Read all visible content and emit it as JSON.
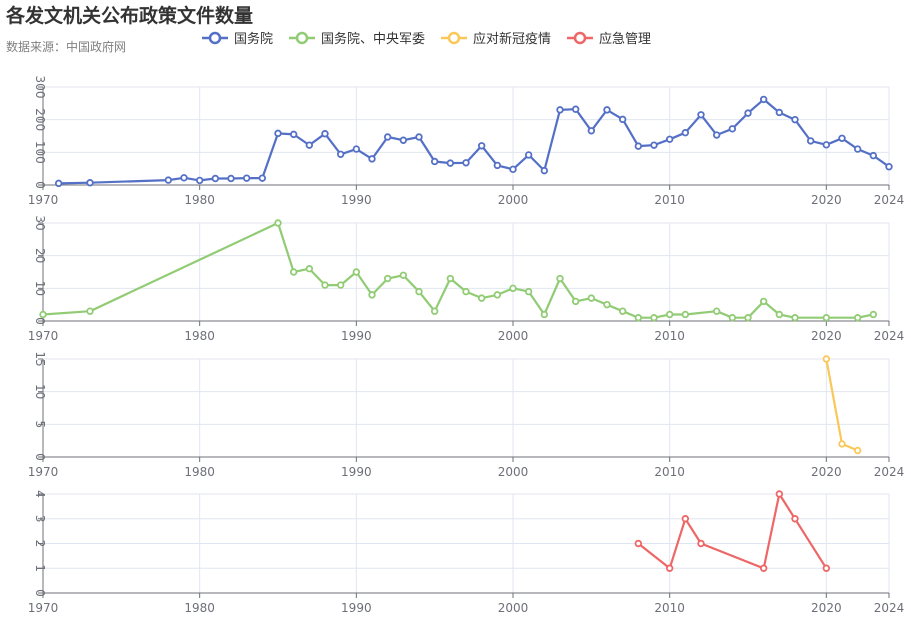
{
  "chart_data": {
    "type": "line",
    "title": "各发文机关公布政策文件数量",
    "subtitle": "数据来源：中国政府网",
    "legend": [
      {
        "name": "国务院",
        "color": "#5470c6"
      },
      {
        "name": "国务院、中央军委",
        "color": "#91cc75"
      },
      {
        "name": "应对新冠疫情",
        "color": "#fac858"
      },
      {
        "name": "应急管理",
        "color": "#ee6666"
      }
    ],
    "xlim": [
      1970,
      2024
    ],
    "x_ticks": [
      "1970",
      "1980",
      "1990",
      "2000",
      "2010",
      "2020",
      "2024"
    ],
    "series": [
      {
        "name": "国务院",
        "color": "#5470c6",
        "ylim": [
          0,
          300
        ],
        "y_ticks": [
          "0",
          "100",
          "200",
          "300"
        ],
        "points": [
          [
            1971,
            5
          ],
          [
            1973,
            7
          ],
          [
            1978,
            15
          ],
          [
            1979,
            22
          ],
          [
            1980,
            14
          ],
          [
            1981,
            20
          ],
          [
            1982,
            20
          ],
          [
            1983,
            21
          ],
          [
            1984,
            21
          ],
          [
            1985,
            158
          ],
          [
            1986,
            155
          ],
          [
            1987,
            122
          ],
          [
            1988,
            157
          ],
          [
            1989,
            94
          ],
          [
            1990,
            110
          ],
          [
            1991,
            80
          ],
          [
            1992,
            147
          ],
          [
            1993,
            137
          ],
          [
            1994,
            147
          ],
          [
            1995,
            72
          ],
          [
            1996,
            67
          ],
          [
            1997,
            68
          ],
          [
            1998,
            120
          ],
          [
            1999,
            60
          ],
          [
            2000,
            48
          ],
          [
            2001,
            92
          ],
          [
            2002,
            44
          ],
          [
            2003,
            230
          ],
          [
            2004,
            232
          ],
          [
            2005,
            166
          ],
          [
            2006,
            230
          ],
          [
            2007,
            201
          ],
          [
            2008,
            119
          ],
          [
            2009,
            122
          ],
          [
            2010,
            140
          ],
          [
            2011,
            160
          ],
          [
            2012,
            215
          ],
          [
            2013,
            153
          ],
          [
            2014,
            172
          ],
          [
            2015,
            220
          ],
          [
            2016,
            262
          ],
          [
            2017,
            222
          ],
          [
            2018,
            200
          ],
          [
            2019,
            135
          ],
          [
            2020,
            123
          ],
          [
            2021,
            143
          ],
          [
            2022,
            110
          ],
          [
            2023,
            90
          ],
          [
            2024,
            56
          ]
        ]
      },
      {
        "name": "国务院、中央军委",
        "color": "#91cc75",
        "ylim": [
          0,
          30
        ],
        "y_ticks": [
          "0",
          "10",
          "20",
          "30"
        ],
        "points": [
          [
            1970,
            2
          ],
          [
            1973,
            3
          ],
          [
            1985,
            30
          ],
          [
            1986,
            15
          ],
          [
            1987,
            16
          ],
          [
            1988,
            11
          ],
          [
            1989,
            11
          ],
          [
            1990,
            15
          ],
          [
            1991,
            8
          ],
          [
            1992,
            13
          ],
          [
            1993,
            14
          ],
          [
            1994,
            9
          ],
          [
            1995,
            3
          ],
          [
            1996,
            13
          ],
          [
            1997,
            9
          ],
          [
            1998,
            7
          ],
          [
            1999,
            8
          ],
          [
            2000,
            10
          ],
          [
            2001,
            9
          ],
          [
            2002,
            2
          ],
          [
            2003,
            13
          ],
          [
            2004,
            6
          ],
          [
            2005,
            7
          ],
          [
            2006,
            5
          ],
          [
            2007,
            3
          ],
          [
            2008,
            1
          ],
          [
            2009,
            1
          ],
          [
            2010,
            2
          ],
          [
            2011,
            2
          ],
          [
            2013,
            3
          ],
          [
            2014,
            1
          ],
          [
            2015,
            1
          ],
          [
            2016,
            6
          ],
          [
            2017,
            2
          ],
          [
            2018,
            1
          ],
          [
            2020,
            1
          ],
          [
            2022,
            1
          ],
          [
            2023,
            2
          ]
        ]
      },
      {
        "name": "应对新冠疫情",
        "color": "#fac858",
        "ylim": [
          0,
          15
        ],
        "y_ticks": [
          "0",
          "5",
          "10",
          "15"
        ],
        "points": [
          [
            2020,
            15
          ],
          [
            2021,
            2
          ],
          [
            2022,
            1
          ]
        ]
      },
      {
        "name": "应急管理",
        "color": "#ee6666",
        "ylim": [
          0,
          4
        ],
        "y_ticks": [
          "0",
          "1",
          "2",
          "3",
          "4"
        ],
        "points": [
          [
            2008,
            2
          ],
          [
            2010,
            1
          ],
          [
            2011,
            3
          ],
          [
            2012,
            2
          ],
          [
            2016,
            1
          ],
          [
            2017,
            4
          ],
          [
            2018,
            3
          ],
          [
            2020,
            1
          ]
        ]
      }
    ]
  }
}
